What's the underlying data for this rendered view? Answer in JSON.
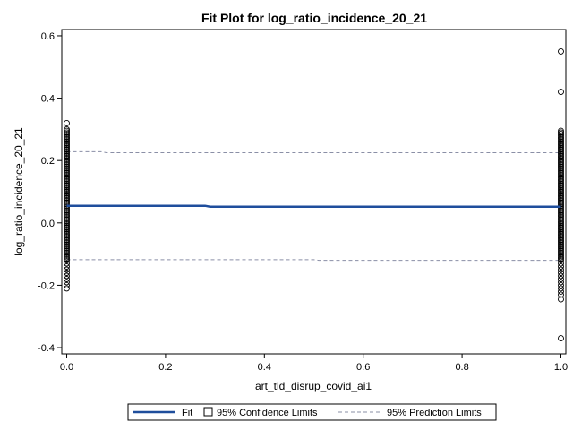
{
  "colors": {
    "fit": "#1F4E9C",
    "limits": "#8A8FA6",
    "points": "#000000",
    "frame": "#000000"
  },
  "chart_data": {
    "type": "scatter",
    "title": "Fit Plot for log_ratio_incidence_20_21",
    "xlabel": "art_tld_disrup_covid_ai1",
    "ylabel": "log_ratio_incidence_20_21",
    "xlim": [
      -0.01,
      1.01
    ],
    "ylim": [
      -0.42,
      0.62
    ],
    "x_ticks": [
      0.0,
      0.2,
      0.4,
      0.6,
      0.8,
      1.0
    ],
    "x_tick_labels": [
      "0.0",
      "0.2",
      "0.4",
      "0.6",
      "0.8",
      "1.0"
    ],
    "y_ticks": [
      -0.4,
      -0.2,
      0.0,
      0.2,
      0.4,
      0.6
    ],
    "y_tick_labels": [
      "-0.4",
      "-0.2",
      "0.0",
      "0.2",
      "0.4",
      "0.6"
    ],
    "grid": false,
    "legend_position": "bottom",
    "legend": [
      {
        "key": "fit",
        "label": "Fit",
        "style": "line"
      },
      {
        "key": "confidence",
        "label": "95% Confidence Limits",
        "style": "box"
      },
      {
        "key": "prediction",
        "label": "95% Prediction Limits",
        "style": "dashed"
      }
    ],
    "fit_line": {
      "x": [
        0.0,
        0.28,
        0.29,
        1.0
      ],
      "y": [
        0.055,
        0.055,
        0.052,
        0.052
      ]
    },
    "prediction_upper": {
      "x": [
        0.0,
        0.07,
        0.08,
        1.0
      ],
      "y": [
        0.228,
        0.228,
        0.225,
        0.225
      ]
    },
    "prediction_lower": {
      "x": [
        0.0,
        0.5,
        0.51,
        1.0
      ],
      "y": [
        -0.118,
        -0.118,
        -0.12,
        -0.12
      ]
    },
    "series": [
      {
        "x_value": 0.0,
        "y": [
          0.32,
          0.3,
          0.295,
          0.29,
          0.285,
          0.28,
          0.275,
          0.27,
          0.265,
          0.26,
          0.255,
          0.25,
          0.245,
          0.24,
          0.235,
          0.23,
          0.225,
          0.22,
          0.215,
          0.21,
          0.205,
          0.2,
          0.195,
          0.19,
          0.185,
          0.18,
          0.175,
          0.17,
          0.165,
          0.16,
          0.155,
          0.15,
          0.145,
          0.14,
          0.135,
          0.13,
          0.125,
          0.12,
          0.115,
          0.11,
          0.105,
          0.1,
          0.095,
          0.09,
          0.085,
          0.08,
          0.075,
          0.07,
          0.065,
          0.06,
          0.055,
          0.05,
          0.045,
          0.04,
          0.035,
          0.03,
          0.025,
          0.02,
          0.015,
          0.01,
          0.005,
          0.0,
          -0.005,
          -0.01,
          -0.015,
          -0.02,
          -0.025,
          -0.03,
          -0.035,
          -0.04,
          -0.045,
          -0.05,
          -0.055,
          -0.06,
          -0.065,
          -0.07,
          -0.075,
          -0.08,
          -0.085,
          -0.09,
          -0.095,
          -0.1,
          -0.105,
          -0.11,
          -0.115,
          -0.12,
          -0.13,
          -0.14,
          -0.15,
          -0.16,
          -0.17,
          -0.18,
          -0.19,
          -0.2,
          -0.21
        ]
      },
      {
        "x_value": 1.0,
        "y": [
          0.55,
          0.42,
          0.295,
          0.29,
          0.285,
          0.28,
          0.275,
          0.27,
          0.265,
          0.26,
          0.255,
          0.25,
          0.245,
          0.24,
          0.235,
          0.23,
          0.225,
          0.22,
          0.215,
          0.21,
          0.205,
          0.2,
          0.195,
          0.19,
          0.185,
          0.18,
          0.175,
          0.17,
          0.165,
          0.16,
          0.155,
          0.15,
          0.145,
          0.14,
          0.135,
          0.13,
          0.125,
          0.12,
          0.115,
          0.11,
          0.105,
          0.1,
          0.095,
          0.09,
          0.085,
          0.08,
          0.075,
          0.07,
          0.065,
          0.06,
          0.055,
          0.05,
          0.045,
          0.04,
          0.035,
          0.03,
          0.025,
          0.02,
          0.015,
          0.01,
          0.005,
          0.0,
          -0.005,
          -0.01,
          -0.015,
          -0.02,
          -0.025,
          -0.03,
          -0.035,
          -0.04,
          -0.045,
          -0.05,
          -0.055,
          -0.06,
          -0.065,
          -0.07,
          -0.075,
          -0.08,
          -0.085,
          -0.09,
          -0.095,
          -0.1,
          -0.105,
          -0.11,
          -0.115,
          -0.12,
          -0.13,
          -0.14,
          -0.15,
          -0.16,
          -0.17,
          -0.18,
          -0.19,
          -0.2,
          -0.21,
          -0.22,
          -0.23,
          -0.245,
          -0.37
        ]
      }
    ]
  }
}
